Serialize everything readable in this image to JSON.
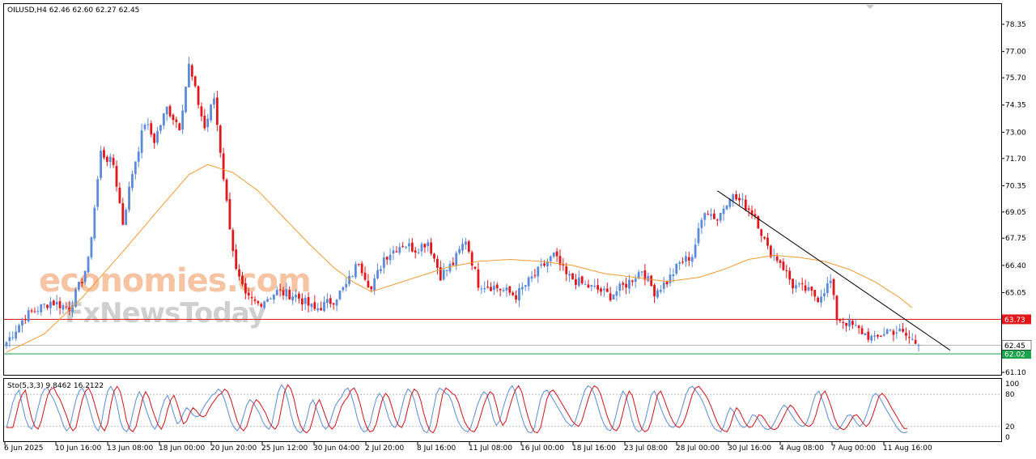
{
  "chart_data": {
    "type": "candlestick",
    "symbol_header": "OILUSD,H4  62.46 62.60 62.27 62.45",
    "colors": {
      "bull": "#5b8bd9",
      "bear": "#e0181b",
      "ma": "#f29a30",
      "resistance": "#e0181b",
      "support": "#1aa34a",
      "trendline": "#000000",
      "current": "#9a9a9a",
      "stoch_main": "#5b8bd9",
      "stoch_signal": "#d0121b"
    },
    "price_axis": {
      "ylim": [
        61.1,
        78.35
      ],
      "ticks": [
        "78.35",
        "77.00",
        "75.70",
        "74.35",
        "73.00",
        "71.70",
        "70.35",
        "69.05",
        "67.75",
        "66.40",
        "65.05",
        "63.73",
        "62.45",
        "62.02",
        "61.10"
      ]
    },
    "x_ticks": [
      "6 Jun 2025",
      "10 Jun 16:00",
      "13 Jun 08:00",
      "18 Jun 00:00",
      "20 Jun 20:00",
      "25 Jun 12:00",
      "30 Jun 04:00",
      "2 Jul 20:00",
      "8 Jul 16:00",
      "11 Jul 08:00",
      "16 Jul 00:00",
      "18 Jul 16:00",
      "23 Jul 08:00",
      "28 Jul 00:00",
      "30 Jul 16:00",
      "4 Aug 08:00",
      "7 Aug 00:00",
      "11 Aug 16:00"
    ],
    "close_anchors": [
      [
        0,
        62.6
      ],
      [
        6,
        63.9
      ],
      [
        14,
        64.6
      ],
      [
        20,
        64.3
      ],
      [
        24,
        65.7
      ],
      [
        26,
        66.6
      ],
      [
        30,
        72.0
      ],
      [
        34,
        71.4
      ],
      [
        37,
        68.5
      ],
      [
        40,
        71.0
      ],
      [
        44,
        73.5
      ],
      [
        47,
        72.6
      ],
      [
        51,
        74.2
      ],
      [
        55,
        73.3
      ],
      [
        58,
        76.3
      ],
      [
        63,
        73.2
      ],
      [
        66,
        74.7
      ],
      [
        70,
        69.5
      ],
      [
        73,
        66.1
      ],
      [
        76,
        64.8
      ],
      [
        80,
        64.5
      ],
      [
        86,
        65.1
      ],
      [
        92,
        64.9
      ],
      [
        98,
        64.2
      ],
      [
        104,
        64.7
      ],
      [
        108,
        65.4
      ],
      [
        112,
        66.6
      ],
      [
        116,
        65.2
      ],
      [
        120,
        66.8
      ],
      [
        126,
        67.5
      ],
      [
        130,
        67.2
      ],
      [
        134,
        67.6
      ],
      [
        138,
        65.9
      ],
      [
        142,
        66.5
      ],
      [
        146,
        67.7
      ],
      [
        150,
        65.5
      ],
      [
        156,
        65.3
      ],
      [
        162,
        64.9
      ],
      [
        166,
        65.6
      ],
      [
        172,
        66.6
      ],
      [
        174,
        66.9
      ],
      [
        178,
        65.9
      ],
      [
        184,
        65.4
      ],
      [
        188,
        65.2
      ],
      [
        192,
        64.9
      ],
      [
        198,
        65.6
      ],
      [
        202,
        66.2
      ],
      [
        206,
        65.1
      ],
      [
        210,
        65.6
      ],
      [
        214,
        66.5
      ],
      [
        218,
        66.9
      ],
      [
        222,
        69.2
      ],
      [
        226,
        68.7
      ],
      [
        230,
        69.9
      ],
      [
        234,
        69.5
      ],
      [
        238,
        68.9
      ],
      [
        242,
        67.2
      ],
      [
        246,
        66.6
      ],
      [
        250,
        65.4
      ],
      [
        254,
        65.2
      ],
      [
        258,
        64.8
      ],
      [
        262,
        65.6
      ],
      [
        264,
        63.8
      ],
      [
        268,
        63.5
      ],
      [
        272,
        63.1
      ],
      [
        276,
        62.7
      ],
      [
        280,
        63.2
      ],
      [
        284,
        63.1
      ],
      [
        288,
        62.7
      ],
      [
        290,
        62.45
      ]
    ],
    "candle_count": 291,
    "ma_anchors": [
      [
        0,
        62.1
      ],
      [
        12,
        63.0
      ],
      [
        24,
        64.8
      ],
      [
        36,
        66.9
      ],
      [
        48,
        69.1
      ],
      [
        58,
        70.9
      ],
      [
        64,
        71.4
      ],
      [
        72,
        71.0
      ],
      [
        80,
        70.1
      ],
      [
        88,
        68.8
      ],
      [
        96,
        67.5
      ],
      [
        104,
        66.3
      ],
      [
        110,
        65.6
      ],
      [
        116,
        65.1
      ],
      [
        124,
        65.5
      ],
      [
        132,
        65.9
      ],
      [
        140,
        66.3
      ],
      [
        150,
        66.6
      ],
      [
        160,
        66.7
      ],
      [
        170,
        66.6
      ],
      [
        180,
        66.4
      ],
      [
        190,
        66.0
      ],
      [
        200,
        65.8
      ],
      [
        210,
        65.6
      ],
      [
        220,
        65.8
      ],
      [
        228,
        66.2
      ],
      [
        236,
        66.7
      ],
      [
        244,
        66.9
      ],
      [
        252,
        66.8
      ],
      [
        260,
        66.6
      ],
      [
        268,
        66.2
      ],
      [
        276,
        65.6
      ],
      [
        284,
        64.8
      ],
      [
        288,
        64.3
      ]
    ],
    "levels": {
      "resistance": 63.73,
      "support": 62.02,
      "current": 62.45
    },
    "trendline": {
      "from": [
        226,
        70.1
      ],
      "to": [
        300,
        62.2
      ]
    },
    "stochastic": {
      "header": "Sto(5,3,3) 9.8462 16.2122",
      "levels": [
        "100",
        "80",
        "20",
        "0"
      ],
      "main": [
        18,
        40,
        65,
        80,
        88,
        60,
        35,
        20,
        15,
        30,
        55,
        78,
        90,
        92,
        80,
        70,
        55,
        40,
        22,
        12,
        18,
        45,
        70,
        86,
        92,
        80,
        60,
        38,
        20,
        12,
        25,
        60,
        86,
        95,
        85,
        60,
        30,
        15,
        10,
        20,
        45,
        70,
        85,
        75,
        55,
        38,
        22,
        15,
        28,
        52,
        70,
        78,
        62,
        42,
        25,
        30,
        45,
        55,
        50,
        42,
        38,
        40,
        52,
        62,
        70,
        78,
        82,
        90,
        85,
        70,
        50,
        30,
        18,
        12,
        20,
        40,
        60,
        70,
        65,
        55,
        45,
        30,
        20,
        15,
        25,
        55,
        85,
        98,
        90,
        70,
        42,
        22,
        12,
        8,
        15,
        35,
        60,
        70,
        55,
        38,
        22,
        15,
        22,
        40,
        58,
        68,
        75,
        88,
        92,
        80,
        60,
        35,
        18,
        10,
        12,
        25,
        50,
        72,
        82,
        74,
        55,
        35,
        22,
        18,
        30,
        55,
        78,
        90,
        85,
        70,
        45,
        25,
        12,
        8,
        20,
        50,
        80,
        92,
        88,
        82,
        78,
        65,
        45,
        28,
        18,
        12,
        10,
        20,
        40,
        60,
        75,
        85,
        80,
        60,
        35,
        22,
        30,
        52,
        72,
        88,
        96,
        85,
        60,
        38,
        20,
        10,
        8,
        18,
        45,
        72,
        85,
        88,
        80,
        70,
        60,
        50,
        40,
        30,
        24,
        20,
        30,
        50,
        70,
        88,
        96,
        92,
        80,
        60,
        40,
        25,
        15,
        12,
        22,
        45,
        70,
        86,
        78,
        55,
        30,
        15,
        10,
        14,
        30,
        55,
        80,
        86,
        72,
        55,
        40,
        28,
        20,
        18,
        25,
        40,
        60,
        80,
        92,
        95,
        88,
        80,
        70,
        56,
        40,
        26,
        16,
        12,
        10,
        22,
        42,
        55,
        48,
        35,
        24,
        18,
        20,
        30,
        42,
        40,
        32,
        22,
        16,
        14,
        18,
        28,
        40,
        52,
        60,
        55,
        45,
        36,
        28,
        22,
        20,
        25,
        40,
        62,
        80,
        86,
        72,
        55,
        35,
        22,
        16,
        14,
        20,
        30,
        40,
        42,
        35,
        26,
        20,
        26,
        40,
        58,
        76,
        82,
        76,
        66,
        55,
        45,
        35,
        25,
        16,
        10,
        8,
        9.85
      ],
      "signal_lag": 2,
      "signal_last": 16.2122
    },
    "watermark": {
      "line1": "economies.com",
      "line2": "FxNewsToday"
    }
  }
}
